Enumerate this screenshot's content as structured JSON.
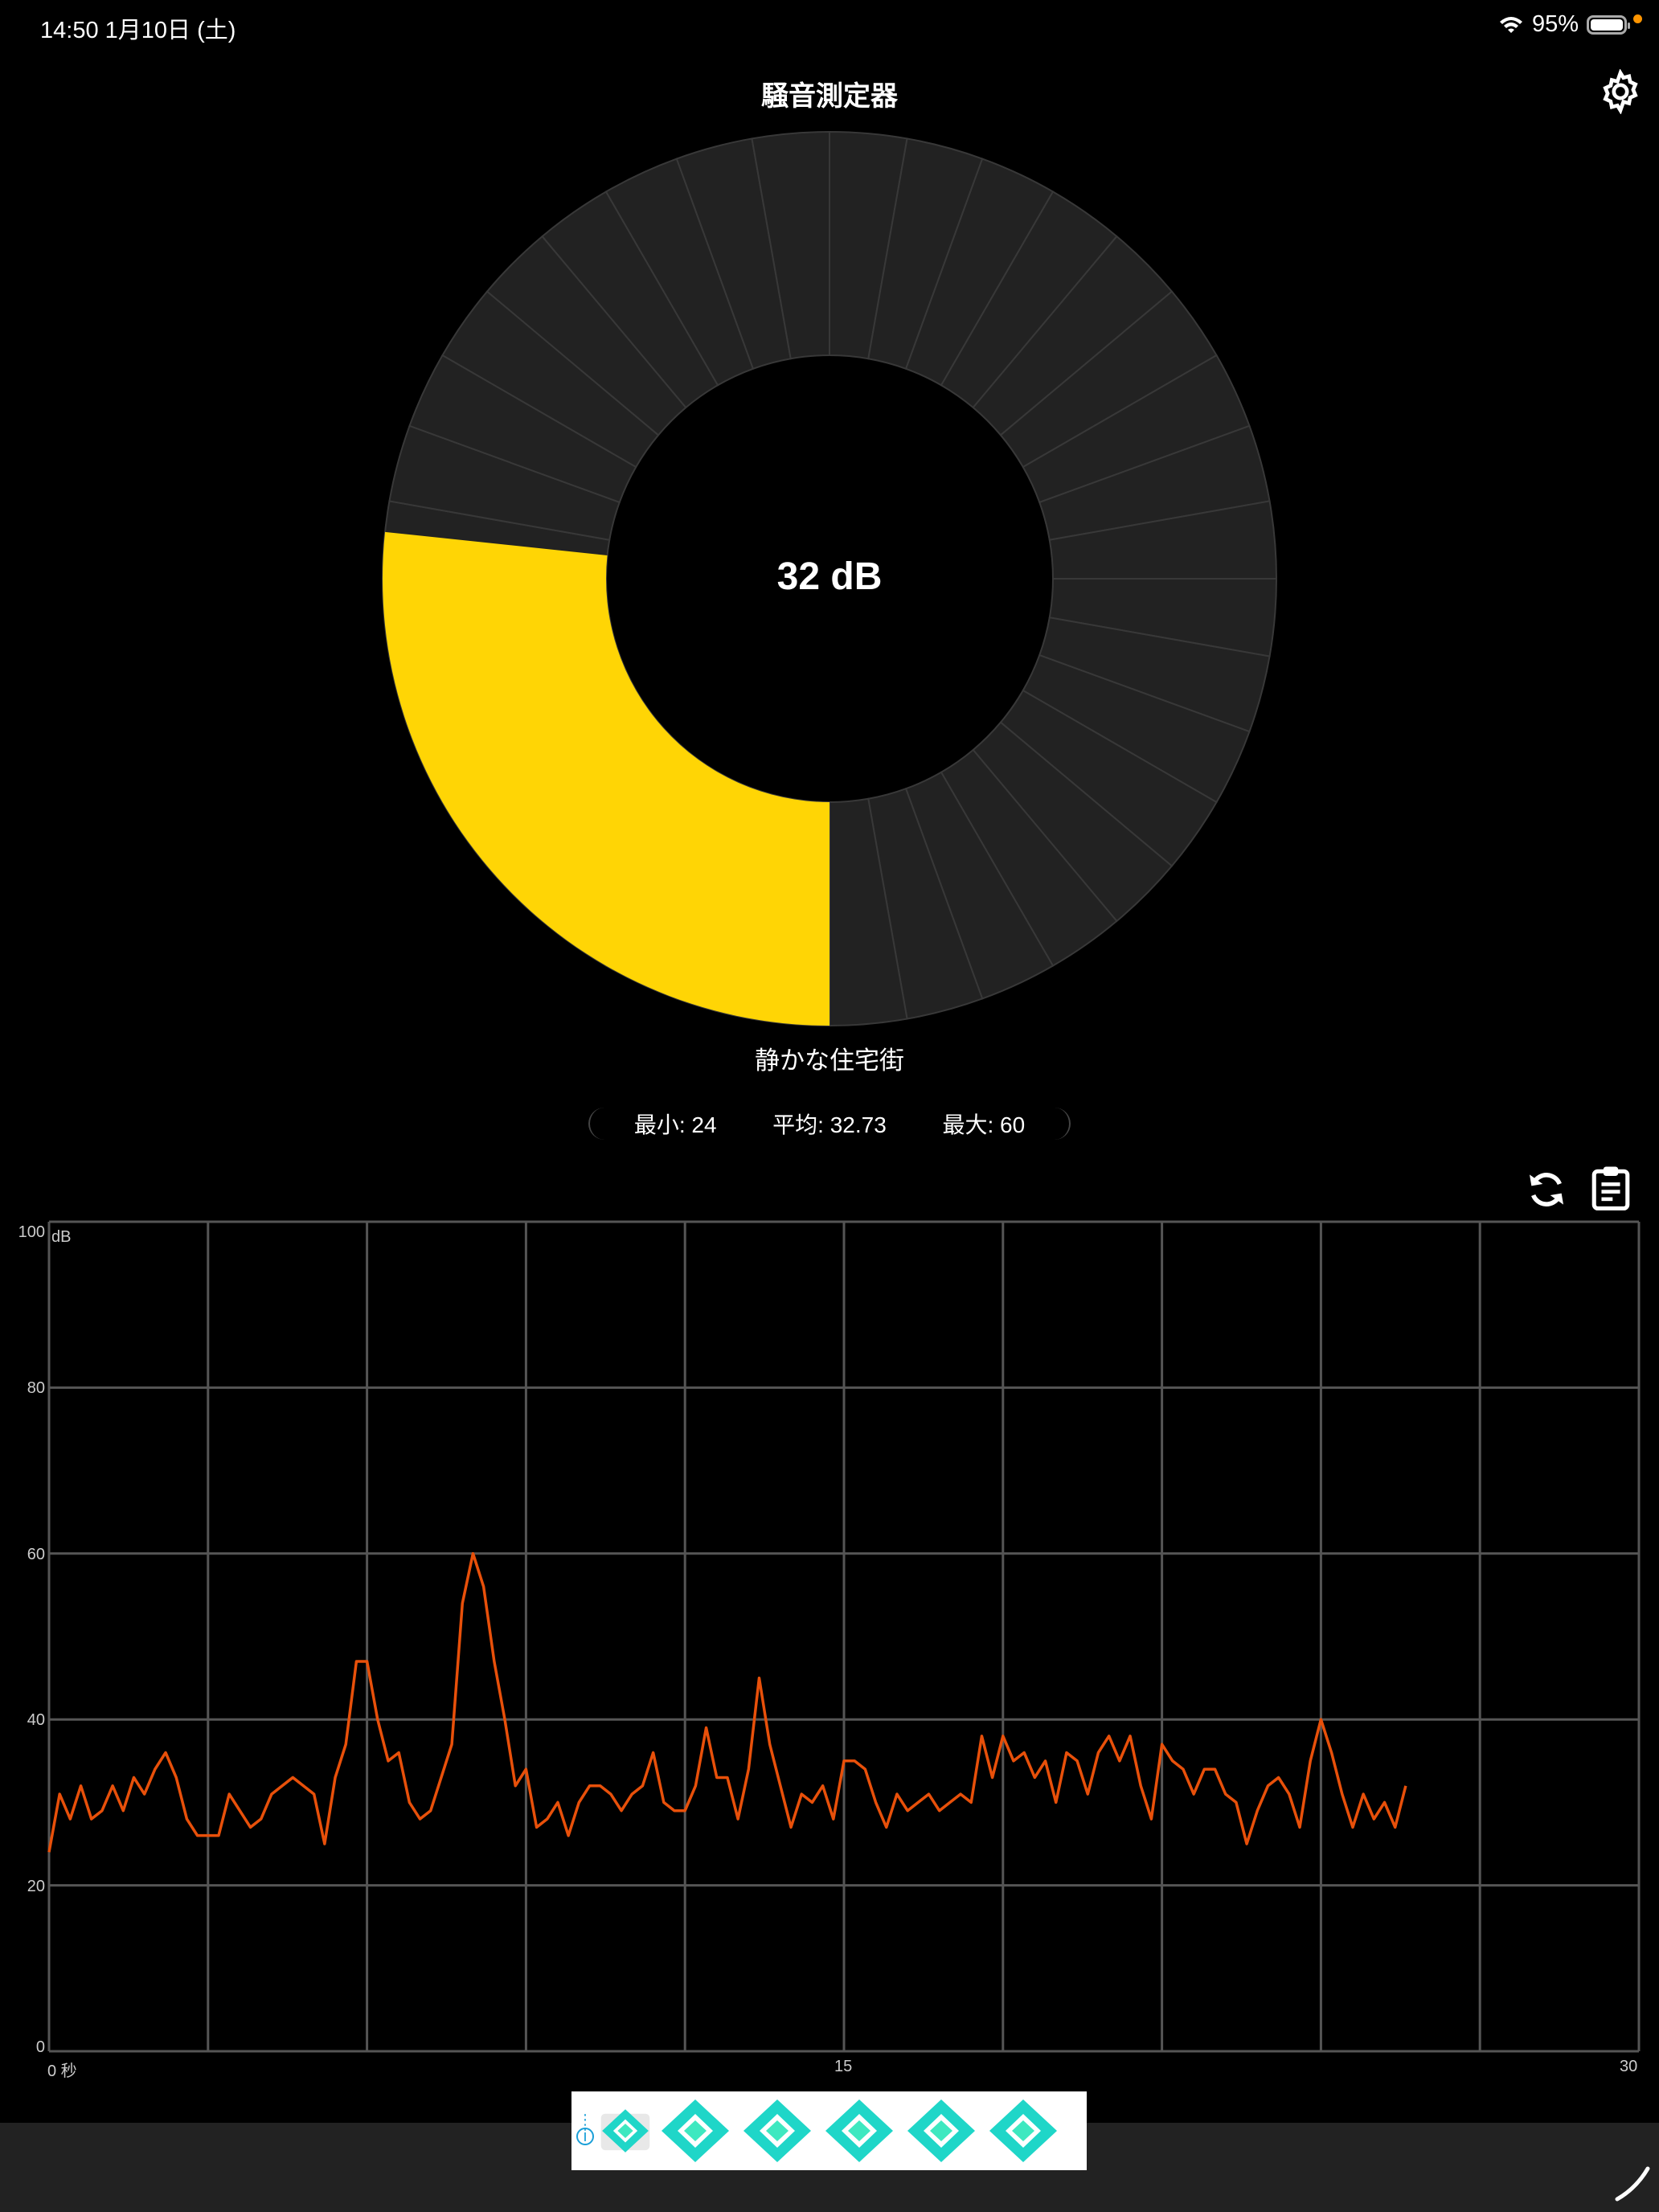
{
  "status_bar": {
    "time_date": "14:50   1月10日 (土)",
    "battery": "95%",
    "wifi_icon": "wifi-icon",
    "battery_icon": "battery-icon"
  },
  "header": {
    "title": "騒音測定器",
    "settings_icon": "gear-icon"
  },
  "gauge": {
    "value": 32,
    "max": 120,
    "segments": 36,
    "display": "32 dB",
    "fill_color": "#FFD505",
    "track_color": "#222222",
    "label": "静かな住宅街"
  },
  "stats": {
    "min": "最小: 24",
    "avg": "平均: 32.73",
    "max": "最大: 60"
  },
  "toolbar": {
    "refresh_icon": "refresh-icon",
    "clipboard_icon": "clipboard-icon"
  },
  "chart_data": {
    "type": "line",
    "ylabel": "dB",
    "xlabel_tick": "0 秒",
    "xlim": [
      0,
      30
    ],
    "ylim": [
      0,
      100
    ],
    "x_ticks": [
      "0 秒",
      "15",
      "30"
    ],
    "y_ticks": [
      "100",
      "80",
      "60",
      "40",
      "20",
      "0"
    ],
    "grid": true,
    "line_color": "#E8500A",
    "x_step": 0.2,
    "values": [
      24,
      31,
      28,
      32,
      28,
      29,
      32,
      29,
      33,
      31,
      34,
      36,
      33,
      28,
      26,
      26,
      26,
      31,
      29,
      27,
      28,
      31,
      32,
      33,
      32,
      31,
      25,
      33,
      37,
      47,
      47,
      40,
      35,
      36,
      30,
      28,
      29,
      33,
      37,
      54,
      60,
      56,
      47,
      40,
      32,
      34,
      27,
      28,
      30,
      26,
      30,
      32,
      32,
      31,
      29,
      31,
      32,
      36,
      30,
      29,
      29,
      32,
      39,
      33,
      33,
      28,
      34,
      45,
      37,
      32,
      27,
      31,
      30,
      32,
      28,
      35,
      35,
      34,
      30,
      27,
      31,
      29,
      30,
      31,
      29,
      30,
      31,
      30,
      38,
      33,
      38,
      35,
      36,
      33,
      35,
      30,
      36,
      35,
      31,
      36,
      38,
      35,
      38,
      32,
      28,
      37,
      35,
      34,
      31,
      34,
      34,
      31,
      30,
      25,
      29,
      32,
      33,
      31,
      27,
      35,
      40,
      36,
      31,
      27,
      31,
      28,
      30,
      27,
      32
    ]
  },
  "ad": {
    "info_icon": "info-icon",
    "more_icon": "more-icon"
  }
}
